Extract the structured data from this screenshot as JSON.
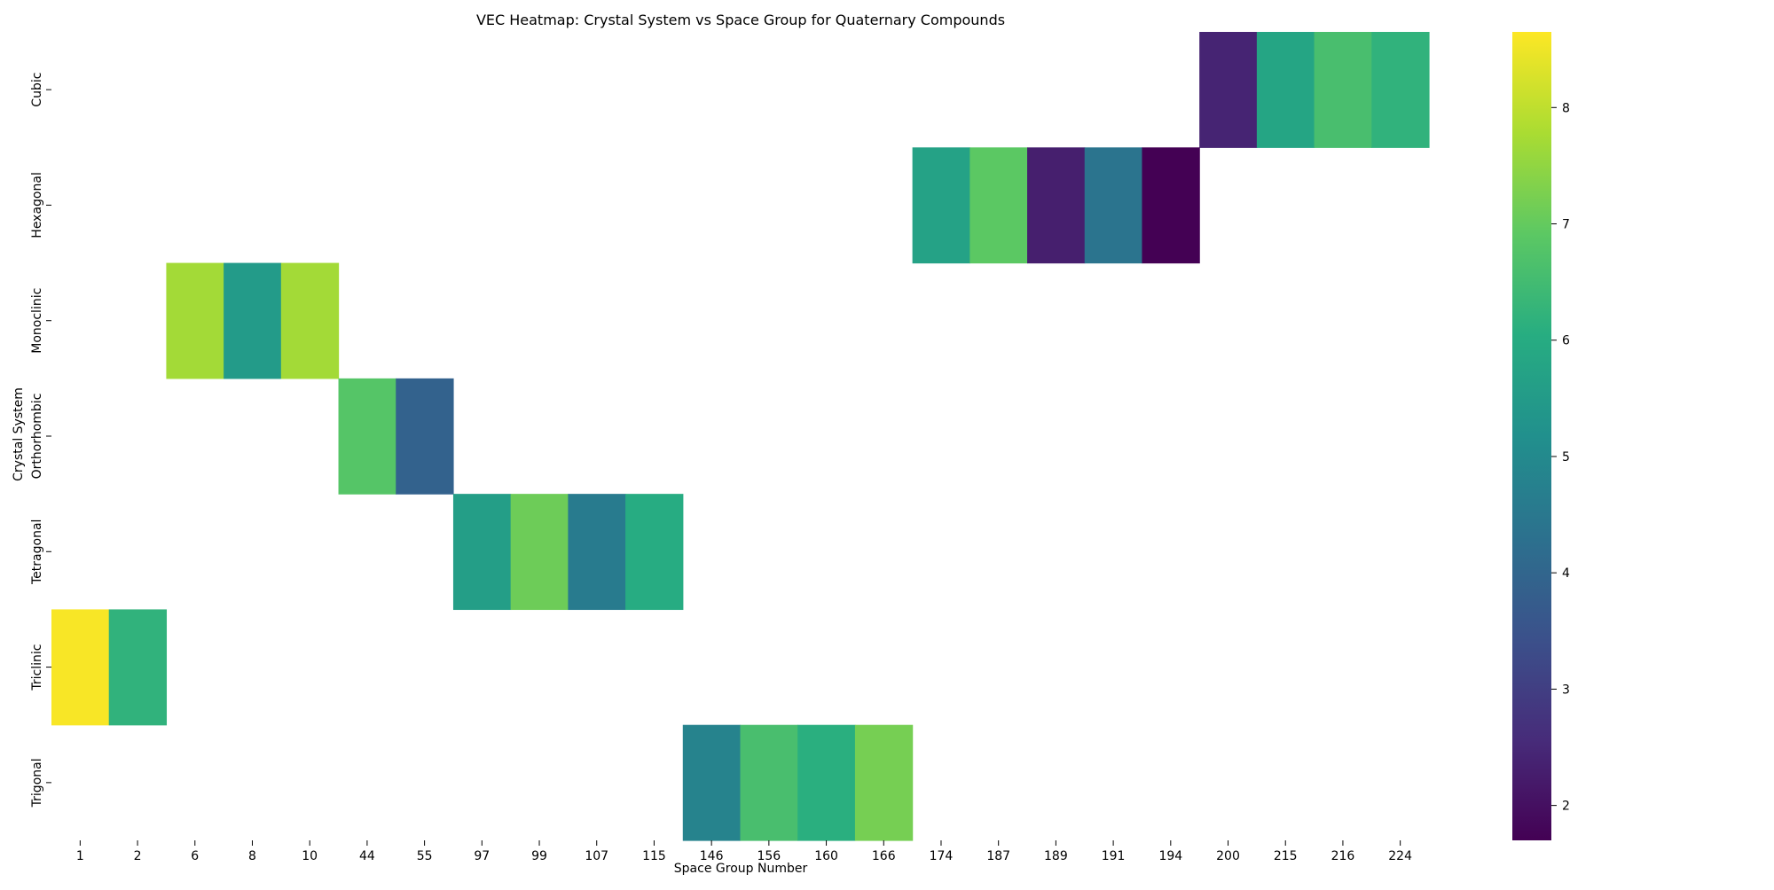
{
  "chart_data": {
    "type": "heatmap",
    "title": "VEC Heatmap: Crystal System vs Space Group for Quaternary Compounds",
    "xlabel": "Space Group Number",
    "ylabel": "Crystal System",
    "x_categories": [
      "1",
      "2",
      "6",
      "8",
      "10",
      "44",
      "55",
      "97",
      "99",
      "107",
      "115",
      "146",
      "156",
      "160",
      "166",
      "174",
      "187",
      "189",
      "191",
      "194",
      "200",
      "215",
      "216",
      "224"
    ],
    "y_categories": [
      "Cubic",
      "Hexagonal",
      "Monoclinic",
      "Orthorhombic",
      "Tetragonal",
      "Triclinic",
      "Trigonal"
    ],
    "values": [
      [
        null,
        null,
        null,
        null,
        null,
        null,
        null,
        null,
        null,
        null,
        null,
        null,
        null,
        null,
        null,
        null,
        null,
        null,
        null,
        null,
        2.4,
        5.8,
        6.6,
        6.2
      ],
      [
        null,
        null,
        null,
        null,
        null,
        null,
        null,
        null,
        null,
        null,
        null,
        null,
        null,
        null,
        null,
        5.7,
        6.9,
        2.3,
        4.4,
        1.7,
        null,
        null,
        null,
        null
      ],
      [
        null,
        null,
        7.7,
        5.5,
        7.7,
        null,
        null,
        null,
        null,
        null,
        null,
        null,
        null,
        null,
        null,
        null,
        null,
        null,
        null,
        null,
        null,
        null,
        null,
        null
      ],
      [
        null,
        null,
        null,
        null,
        null,
        6.8,
        3.9,
        null,
        null,
        null,
        null,
        null,
        null,
        null,
        null,
        null,
        null,
        null,
        null,
        null,
        null,
        null,
        null,
        null
      ],
      [
        null,
        null,
        null,
        null,
        null,
        null,
        null,
        5.6,
        7.1,
        4.6,
        6.0,
        null,
        null,
        null,
        null,
        null,
        null,
        null,
        null,
        null,
        null,
        null,
        null,
        null
      ],
      [
        8.6,
        6.2,
        null,
        null,
        null,
        null,
        null,
        null,
        null,
        null,
        null,
        null,
        null,
        null,
        null,
        null,
        null,
        null,
        null,
        null,
        null,
        null,
        null,
        null
      ],
      [
        null,
        null,
        null,
        null,
        null,
        null,
        null,
        null,
        null,
        null,
        null,
        4.8,
        6.6,
        6.1,
        7.2,
        null,
        null,
        null,
        null,
        null,
        null,
        null,
        null,
        null
      ]
    ],
    "colorbar": {
      "colormap": "viridis",
      "vmin": 1.7,
      "vmax": 8.65,
      "ticks": [
        2,
        3,
        4,
        5,
        6,
        7,
        8
      ]
    }
  }
}
